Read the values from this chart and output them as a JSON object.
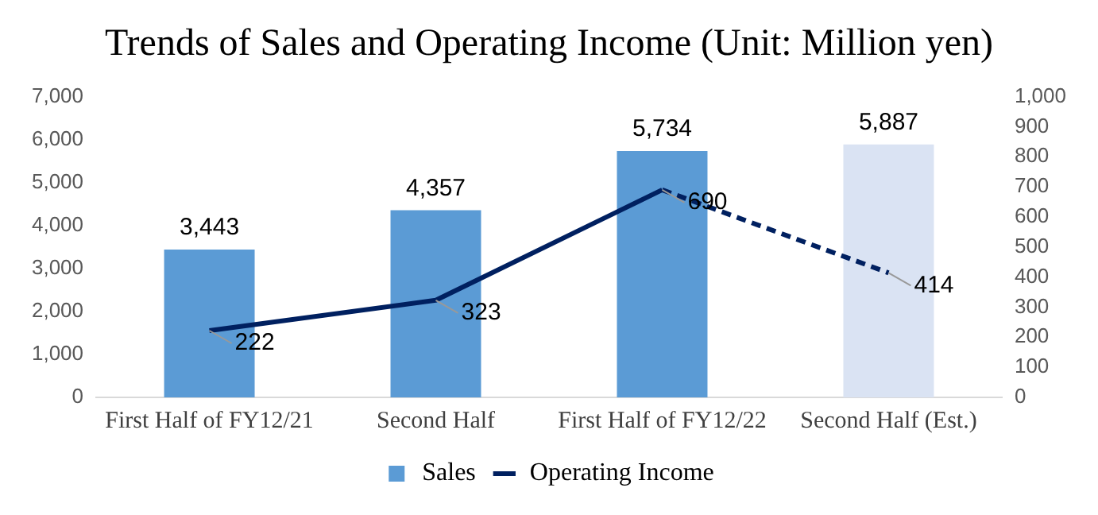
{
  "chart_data": {
    "type": "bar",
    "title": "Trends of Sales and Operating Income (Unit: Million yen)",
    "categories": [
      "First Half of FY12/21",
      "Second Half",
      "First Half of FY12/22",
      "Second Half (Est.)"
    ],
    "series": [
      {
        "name": "Sales",
        "color": "#5b9bd5",
        "colors": [
          "#5b9bd5",
          "#5b9bd5",
          "#5b9bd5",
          "#dae3f3"
        ],
        "values": [
          3443,
          4357,
          5734,
          5887
        ],
        "value_labels": [
          "3,443",
          "4,357",
          "5,734",
          "5,887"
        ]
      },
      {
        "name": "Operating Income",
        "type": "line",
        "axis": "y2",
        "color": "#002060",
        "line_style": "solid",
        "values": [
          222,
          323,
          690,
          null
        ],
        "value_labels": [
          "222",
          "323",
          "690",
          null
        ]
      },
      {
        "type": "line",
        "axis": "y2",
        "color": "#002060",
        "line_style": "dashed",
        "values": [
          null,
          null,
          690,
          414
        ],
        "value_labels": [
          null,
          null,
          null,
          "414"
        ]
      }
    ],
    "ylim": [
      0,
      7000
    ],
    "yticks": [
      0,
      {
        "value": 1000,
        "label": "1,000"
      },
      {
        "value": 2000,
        "label": "2,000"
      },
      {
        "value": 3000,
        "label": "3,000"
      },
      {
        "value": 4000,
        "label": "4,000"
      },
      {
        "value": 5000,
        "label": "5,000"
      },
      {
        "value": 6000,
        "label": "6,000"
      },
      {
        "value": 7000,
        "label": "7,000"
      }
    ],
    "y2lim": [
      0,
      1000
    ],
    "y2ticks": [
      0,
      100,
      200,
      300,
      400,
      500,
      600,
      700,
      800,
      900,
      {
        "value": 1000,
        "label": "1,000"
      }
    ],
    "legend": "bottom",
    "grid": false,
    "marker": "none"
  }
}
